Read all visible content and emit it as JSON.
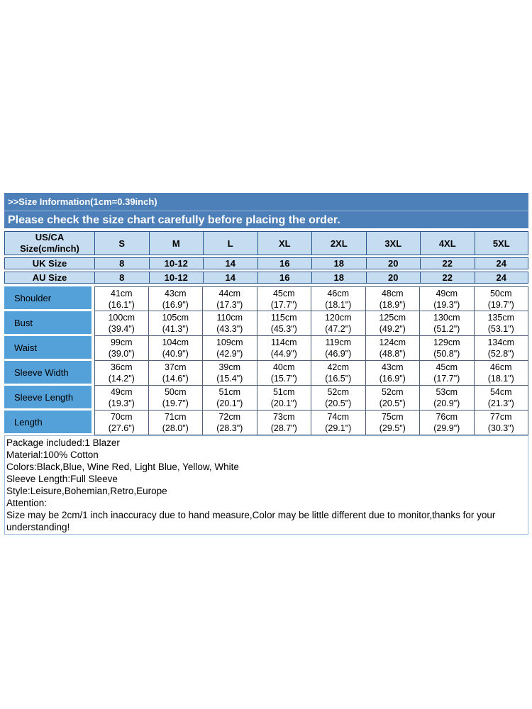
{
  "banner": {
    "line1": ">>Size Information(1cm=0.39inch)",
    "line2": "Please check the size chart carefully before placing the order."
  },
  "size_table": {
    "corner": {
      "line1": "US/CA",
      "line2": "Size(cm/inch)"
    },
    "sizes": [
      "S",
      "M",
      "L",
      "XL",
      "2XL",
      "3XL",
      "4XL",
      "5XL"
    ],
    "uk": {
      "label": "UK Size",
      "values": [
        "8",
        "10-12",
        "14",
        "16",
        "18",
        "20",
        "22",
        "24"
      ]
    },
    "au": {
      "label": "AU Size",
      "values": [
        "8",
        "10-12",
        "14",
        "16",
        "18",
        "20",
        "22",
        "24"
      ]
    },
    "measurements": [
      {
        "label": "Shoulder",
        "cells": [
          {
            "cm": "41cm",
            "inch": "(16.1\")"
          },
          {
            "cm": "43cm",
            "inch": "(16.9\")"
          },
          {
            "cm": "44cm",
            "inch": "(17.3\")"
          },
          {
            "cm": "45cm",
            "inch": "(17.7\")"
          },
          {
            "cm": "46cm",
            "inch": "(18.1\")"
          },
          {
            "cm": "48cm",
            "inch": "(18.9\")"
          },
          {
            "cm": "49cm",
            "inch": "(19.3\")"
          },
          {
            "cm": "50cm",
            "inch": "(19.7\")"
          }
        ]
      },
      {
        "label": "Bust",
        "cells": [
          {
            "cm": "100cm",
            "inch": "(39.4\")"
          },
          {
            "cm": "105cm",
            "inch": "(41.3\")"
          },
          {
            "cm": "110cm",
            "inch": "(43.3\")"
          },
          {
            "cm": "115cm",
            "inch": "(45.3\")"
          },
          {
            "cm": "120cm",
            "inch": "(47.2\")"
          },
          {
            "cm": "125cm",
            "inch": "(49.2\")"
          },
          {
            "cm": "130cm",
            "inch": "(51.2\")"
          },
          {
            "cm": "135cm",
            "inch": "(53.1\")"
          }
        ]
      },
      {
        "label": "Waist",
        "cells": [
          {
            "cm": "99cm",
            "inch": "(39.0\")"
          },
          {
            "cm": "104cm",
            "inch": "(40.9\")"
          },
          {
            "cm": "109cm",
            "inch": "(42.9\")"
          },
          {
            "cm": "114cm",
            "inch": "(44.9\")"
          },
          {
            "cm": "119cm",
            "inch": "(46.9\")"
          },
          {
            "cm": "124cm",
            "inch": "(48.8\")"
          },
          {
            "cm": "129cm",
            "inch": "(50.8\")"
          },
          {
            "cm": "134cm",
            "inch": "(52.8\")"
          }
        ]
      },
      {
        "label": "Sleeve Width",
        "cells": [
          {
            "cm": "36cm",
            "inch": "(14.2\")"
          },
          {
            "cm": "37cm",
            "inch": "(14.6\")"
          },
          {
            "cm": "39cm",
            "inch": "(15.4\")"
          },
          {
            "cm": "40cm",
            "inch": "(15.7\")"
          },
          {
            "cm": "42cm",
            "inch": "(16.5\")"
          },
          {
            "cm": "43cm",
            "inch": "(16.9\")"
          },
          {
            "cm": "45cm",
            "inch": "(17.7\")"
          },
          {
            "cm": "46cm",
            "inch": "(18.1\")"
          }
        ]
      },
      {
        "label": "Sleeve Length",
        "cells": [
          {
            "cm": "49cm",
            "inch": "(19.3\")"
          },
          {
            "cm": "50cm",
            "inch": "(19.7\")"
          },
          {
            "cm": "51cm",
            "inch": "(20.1\")"
          },
          {
            "cm": "51cm",
            "inch": "(20.1\")"
          },
          {
            "cm": "52cm",
            "inch": "(20.5\")"
          },
          {
            "cm": "52cm",
            "inch": "(20.5\")"
          },
          {
            "cm": "53cm",
            "inch": "(20.9\")"
          },
          {
            "cm": "54cm",
            "inch": "(21.3\")"
          }
        ]
      },
      {
        "label": "Length",
        "cells": [
          {
            "cm": "70cm",
            "inch": "(27.6\")"
          },
          {
            "cm": "71cm",
            "inch": "(28.0\")"
          },
          {
            "cm": "72cm",
            "inch": "(28.3\")"
          },
          {
            "cm": "73cm",
            "inch": "(28.7\")"
          },
          {
            "cm": "74cm",
            "inch": "(29.1\")"
          },
          {
            "cm": "75cm",
            "inch": "(29.5\")"
          },
          {
            "cm": "76cm",
            "inch": "(29.9\")"
          },
          {
            "cm": "77cm",
            "inch": "(30.3\")"
          }
        ]
      }
    ]
  },
  "notes": {
    "lines": [
      "Package included:1 Blazer",
      "Material:100% Cotton",
      "Colors:Black,Blue, Wine Red, Light Blue, Yellow, White",
      "Sleeve Length:Full Sleeve",
      "Style:Leisure,Bohemian,Retro,Europe",
      "Attention:",
      "Size may be 2cm/1 inch inaccuracy due to hand measure,Color may be little different due to monitor,thanks for your understanding!"
    ]
  },
  "colors": {
    "banner_bg": "#4d80b9",
    "header_cell_bg": "#c6dcf0",
    "row_label_bg": "#54a1d9",
    "header_border": "#27568c",
    "grid_border": "#4c6078",
    "notes_border": "#9ab8dc"
  }
}
